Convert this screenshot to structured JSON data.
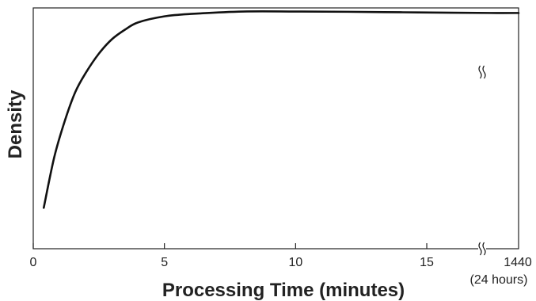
{
  "chart_data": {
    "type": "line",
    "title": "",
    "xlabel": "Processing Time (minutes)",
    "ylabel": "Density",
    "xlim": [
      0,
      18.5
    ],
    "x_ticks": [
      {
        "value": 0,
        "label": "0"
      },
      {
        "value": 5,
        "label": "5"
      },
      {
        "value": 10,
        "label": "10"
      },
      {
        "value": 15,
        "label": "15"
      }
    ],
    "axis_break": {
      "at": 17.4,
      "end_label": "1440",
      "end_sublabel": "(24 hours)"
    },
    "y_ticks_shown": false,
    "grid": false,
    "legend": "none",
    "series": [
      {
        "x": [
          0.4,
          0.8,
          1.2,
          1.6,
          2.0,
          2.5,
          3.0,
          3.5,
          4.0,
          5.0,
          6.0,
          8.0,
          10.0,
          12.0,
          14.0,
          16.0,
          17.4,
          18.5
        ],
        "y": [
          0.17,
          0.38,
          0.53,
          0.65,
          0.73,
          0.81,
          0.87,
          0.91,
          0.94,
          0.965,
          0.975,
          0.985,
          0.985,
          0.984,
          0.982,
          0.98,
          0.979,
          0.979
        ],
        "color": "#111111"
      }
    ]
  }
}
